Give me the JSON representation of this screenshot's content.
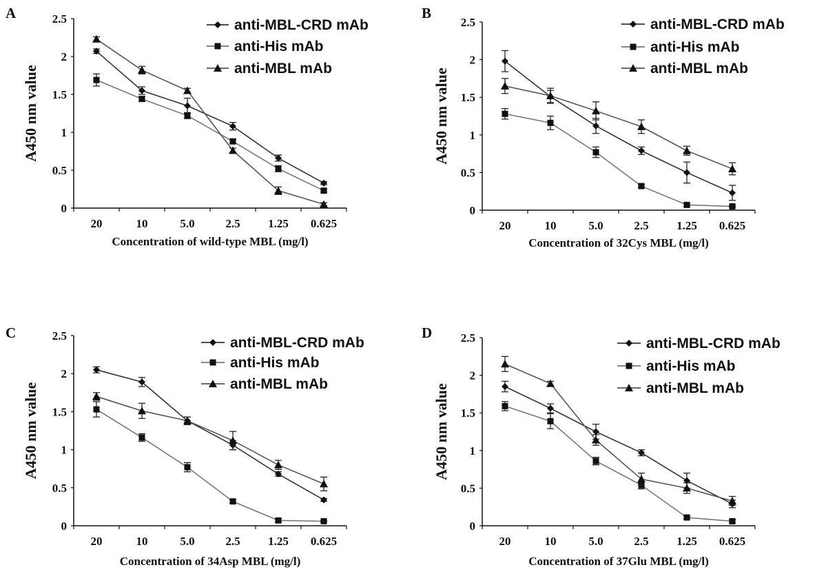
{
  "chart_data": [
    {
      "type": "line",
      "panel": "A",
      "xlabel": "Concentration of wild-type MBL (mg/l)",
      "ylabel": "A450 nm value",
      "ylim": [
        0,
        2.5
      ],
      "yticks": [
        "0",
        "0.5",
        "1",
        "1.5",
        "2",
        "2.5"
      ],
      "categories": [
        "20",
        "10",
        "5.0",
        "2.5",
        "1.25",
        "0.625"
      ],
      "series": [
        {
          "name": "anti-MBL-CRD mAb",
          "marker": "diamond",
          "color": "#333333",
          "values": [
            2.07,
            1.55,
            1.35,
            1.08,
            0.66,
            0.33
          ],
          "errors": [
            0.03,
            0.05,
            0.1,
            0.05,
            0.04,
            0.02
          ]
        },
        {
          "name": "anti-His mAb",
          "marker": "square",
          "color": "#777777",
          "values": [
            1.69,
            1.44,
            1.22,
            0.88,
            0.52,
            0.23
          ],
          "errors": [
            0.08,
            0.03,
            0.04,
            0.03,
            0.04,
            0.02
          ]
        },
        {
          "name": "anti-MBL mAb",
          "marker": "triangle",
          "color": "#555555",
          "values": [
            2.23,
            1.82,
            1.55,
            0.76,
            0.23,
            0.05
          ],
          "errors": [
            0.03,
            0.05,
            0.03,
            0.03,
            0.05,
            0.02
          ]
        }
      ],
      "legend_position": "top-right"
    },
    {
      "type": "line",
      "panel": "B",
      "xlabel": "Concentration of 32Cys MBL (mg/l)",
      "ylabel": "A450 nm value",
      "ylim": [
        0,
        2.5
      ],
      "yticks": [
        "0",
        "0.5",
        "1",
        "1.5",
        "2",
        "2.5"
      ],
      "categories": [
        "20",
        "10",
        "5.0",
        "2.5",
        "1.25",
        "0.625"
      ],
      "series": [
        {
          "name": "anti-MBL-CRD mAb",
          "marker": "diamond",
          "color": "#333333",
          "values": [
            1.98,
            1.51,
            1.12,
            0.79,
            0.5,
            0.23
          ],
          "errors": [
            0.14,
            0.08,
            0.1,
            0.05,
            0.14,
            0.1
          ]
        },
        {
          "name": "anti-His mAb",
          "marker": "square",
          "color": "#777777",
          "values": [
            1.28,
            1.16,
            0.77,
            0.32,
            0.07,
            0.05
          ],
          "errors": [
            0.07,
            0.09,
            0.07,
            0.02,
            0.02,
            0.01
          ]
        },
        {
          "name": "anti-MBL mAb",
          "marker": "triangle",
          "color": "#555555",
          "values": [
            1.65,
            1.52,
            1.32,
            1.11,
            0.79,
            0.55
          ],
          "errors": [
            0.1,
            0.1,
            0.12,
            0.09,
            0.06,
            0.08
          ]
        }
      ],
      "legend_position": "top-right"
    },
    {
      "type": "line",
      "panel": "C",
      "xlabel": "Concentration of 34Asp MBL (mg/l)",
      "ylabel": "A450 nm value",
      "ylim": [
        0,
        2.5
      ],
      "yticks": [
        "0",
        "0.5",
        "1",
        "1.5",
        "2",
        "2.5"
      ],
      "categories": [
        "20",
        "10",
        "5.0",
        "2.5",
        "1.25",
        "0.625"
      ],
      "series": [
        {
          "name": "anti-MBL-CRD mAb",
          "marker": "diamond",
          "color": "#333333",
          "values": [
            2.05,
            1.89,
            1.38,
            1.06,
            0.68,
            0.34
          ],
          "errors": [
            0.04,
            0.06,
            0.05,
            0.06,
            0.03,
            0.02
          ]
        },
        {
          "name": "anti-His mAb",
          "marker": "square",
          "color": "#777777",
          "values": [
            1.53,
            1.16,
            0.77,
            0.32,
            0.07,
            0.06
          ],
          "errors": [
            0.1,
            0.05,
            0.06,
            0.02,
            0.02,
            0.01
          ]
        },
        {
          "name": "anti-MBL mAb",
          "marker": "triangle",
          "color": "#555555",
          "values": [
            1.7,
            1.51,
            1.38,
            1.12,
            0.8,
            0.55
          ],
          "errors": [
            0.05,
            0.1,
            0.05,
            0.12,
            0.06,
            0.09
          ]
        }
      ],
      "legend_position": "top-right"
    },
    {
      "type": "line",
      "panel": "D",
      "xlabel": "Concentration of 37Glu MBL (mg/l)",
      "ylabel": "A450 nm value",
      "ylim": [
        0,
        2.5
      ],
      "yticks": [
        "0",
        "0.5",
        "1",
        "1.5",
        "2",
        "2.5"
      ],
      "categories": [
        "20",
        "10",
        "5.0",
        "2.5",
        "1.25",
        "0.625"
      ],
      "series": [
        {
          "name": "anti-MBL-CRD mAb",
          "marker": "diamond",
          "color": "#333333",
          "values": [
            1.85,
            1.56,
            1.25,
            0.97,
            0.6,
            0.29
          ],
          "errors": [
            0.07,
            0.06,
            0.1,
            0.04,
            0.1,
            0.05
          ]
        },
        {
          "name": "anti-His mAb",
          "marker": "square",
          "color": "#777777",
          "values": [
            1.59,
            1.39,
            0.86,
            0.54,
            0.11,
            0.06
          ],
          "errors": [
            0.06,
            0.1,
            0.05,
            0.05,
            0.02,
            0.02
          ]
        },
        {
          "name": "anti-MBL mAb",
          "marker": "triangle",
          "color": "#555555",
          "values": [
            2.15,
            1.89,
            1.14,
            0.62,
            0.5,
            0.33
          ],
          "errors": [
            0.1,
            0.03,
            0.07,
            0.08,
            0.07,
            0.06
          ]
        }
      ],
      "legend_position": "top-right"
    }
  ]
}
